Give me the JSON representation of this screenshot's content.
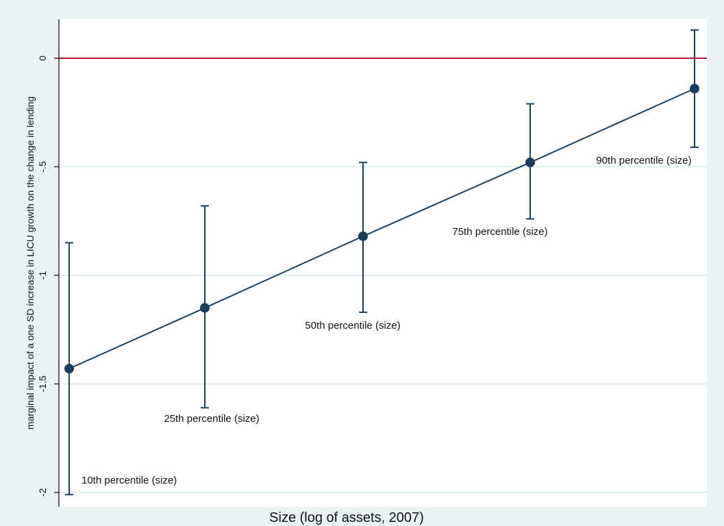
{
  "chart_data": {
    "type": "line",
    "title": "",
    "xlabel": "Size (log of assets, 2007)",
    "ylabel": "marginal impact of a one SD increase in LICU growth on the change in lending",
    "ylim": [
      -2.07,
      0.18
    ],
    "yticks": [
      0,
      -0.5,
      -1,
      -1.5,
      -2
    ],
    "ytick_labels": [
      "0",
      "-.5",
      "-1",
      "-1.5",
      "-2"
    ],
    "grid": true,
    "reference_line": {
      "y": 0,
      "color": "#c0143c"
    },
    "series": [
      {
        "color": "#1a3d5c",
        "points": [
          {
            "label": "10th percentile (size)",
            "y": -1.43,
            "ci_low": -2.01,
            "ci_high": -0.85
          },
          {
            "label": "25th percentile (size)",
            "y": -1.15,
            "ci_low": -1.61,
            "ci_high": -0.68
          },
          {
            "label": "50th percentile (size)",
            "y": -0.82,
            "ci_low": -1.17,
            "ci_high": -0.48
          },
          {
            "label": "75th percentile (size)",
            "y": -0.48,
            "ci_low": -0.74,
            "ci_high": -0.21
          },
          {
            "label": "90th percentile (size)",
            "y": -0.14,
            "ci_low": -0.41,
            "ci_high": 0.13
          }
        ]
      }
    ]
  }
}
